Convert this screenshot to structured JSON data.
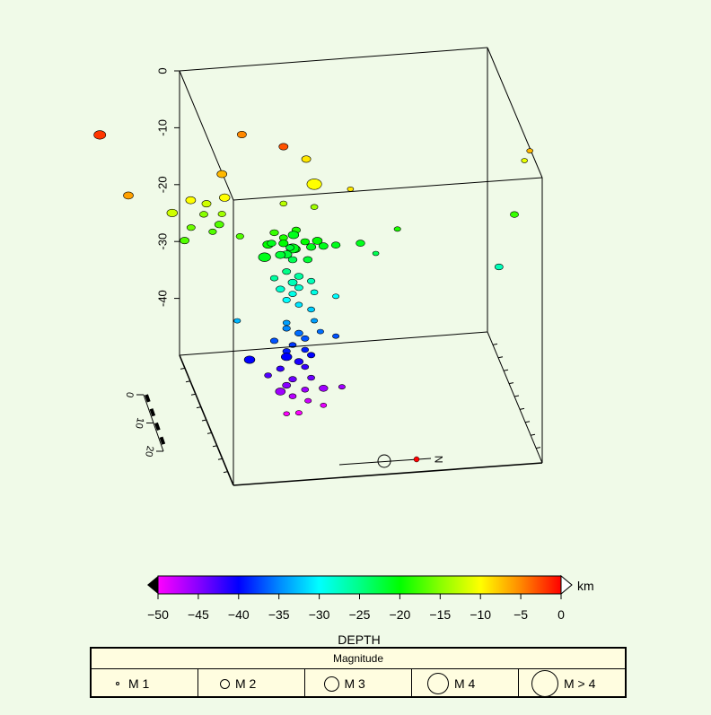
{
  "chart_data": {
    "type": "scatter3d",
    "z_axis": {
      "ticks": [
        0,
        -10,
        -20,
        -30,
        -40
      ],
      "range": [
        -50,
        0
      ]
    },
    "scale_bar": {
      "ticks": [
        "0",
        "10",
        "20"
      ]
    },
    "north_label": "N",
    "colorbar": {
      "label": "DEPTH",
      "unit": "km",
      "range": [
        -50,
        0
      ],
      "ticks": [
        "−50",
        "−45",
        "−40",
        "−35",
        "−30",
        "−25",
        "−20",
        "−15",
        "−10",
        "−5",
        "0"
      ],
      "colors": [
        "#ff00ff",
        "#8800ff",
        "#0000ff",
        "#0088ff",
        "#00ffff",
        "#00ff88",
        "#00ff00",
        "#88ff00",
        "#ffff00",
        "#ff8800",
        "#ff0000"
      ]
    },
    "magnitude_legend": {
      "title": "Magnitude",
      "items": [
        {
          "label": "M 1",
          "mag": 1
        },
        {
          "label": "M 2",
          "mag": 2
        },
        {
          "label": "M 3",
          "mag": 3
        },
        {
          "label": "M 4",
          "mag": 4
        },
        {
          "label": "M > 4",
          "mag": 5
        }
      ]
    },
    "events": [
      {
        "x": -0.32,
        "y": 0.35,
        "z": -2,
        "m": 3.5
      },
      {
        "x": -0.28,
        "y": 0.65,
        "z": -6,
        "m": 2.8
      },
      {
        "x": 0.25,
        "y": 0.5,
        "z": -3,
        "m": 2.5
      },
      {
        "x": 0.15,
        "y": 0.3,
        "z": -5,
        "m": 2.5
      },
      {
        "x": 0.05,
        "y": 0.5,
        "z": -7,
        "m": 2.8
      },
      {
        "x": -0.06,
        "y": 0.55,
        "z": -10,
        "m": 2.8
      },
      {
        "x": 0.05,
        "y": 0.55,
        "z": -10,
        "m": 3
      },
      {
        "x": 0.35,
        "y": 0.5,
        "z": -10,
        "m": 4.5
      },
      {
        "x": 0.35,
        "y": 0.35,
        "z": -9,
        "m": 2.5
      },
      {
        "x": 0.45,
        "y": 0.6,
        "z": -9,
        "m": 1.5
      },
      {
        "x": 0.0,
        "y": 0.5,
        "z": -12,
        "m": 2.5
      },
      {
        "x": -0.12,
        "y": 0.55,
        "z": -12,
        "m": 3
      },
      {
        "x": 0.25,
        "y": 0.5,
        "z": -13,
        "m": 1.8
      },
      {
        "x": 0.05,
        "y": 0.5,
        "z": -14,
        "m": 2
      },
      {
        "x": 0.35,
        "y": 0.5,
        "z": -14,
        "m": 1.8
      },
      {
        "x": 0.0,
        "y": 0.45,
        "z": -15,
        "m": 2.2
      },
      {
        "x": -0.05,
        "y": 0.5,
        "z": -16,
        "m": 2.2
      },
      {
        "x": 0.05,
        "y": 0.45,
        "z": -17,
        "m": 2.5
      },
      {
        "x": 0.1,
        "y": 0.55,
        "z": -17,
        "m": 2
      },
      {
        "x": -0.08,
        "y": 0.55,
        "z": -17,
        "m": 2.5
      },
      {
        "x": 0.02,
        "y": 0.5,
        "z": -17,
        "m": 2
      },
      {
        "x": 0.22,
        "y": 0.5,
        "z": -18,
        "m": 2.3
      },
      {
        "x": 0.25,
        "y": 0.5,
        "z": -19,
        "m": 2.2
      },
      {
        "x": 0.3,
        "y": 0.45,
        "z": -19,
        "m": 2.3
      },
      {
        "x": 0.2,
        "y": 0.5,
        "z": -20,
        "m": 3
      },
      {
        "x": 0.25,
        "y": 0.5,
        "z": -20,
        "m": 2.6
      },
      {
        "x": 0.28,
        "y": 0.55,
        "z": -20,
        "m": 2.8
      },
      {
        "x": 0.32,
        "y": 0.5,
        "z": -20,
        "m": 2.4
      },
      {
        "x": 0.36,
        "y": 0.5,
        "z": -20,
        "m": 2.8
      },
      {
        "x": 0.22,
        "y": 0.45,
        "z": -21,
        "m": 2.4
      },
      {
        "x": 0.18,
        "y": 0.55,
        "z": -21,
        "m": 3.6
      },
      {
        "x": 0.28,
        "y": 0.5,
        "z": -21,
        "m": 3.8
      },
      {
        "x": 0.3,
        "y": 0.4,
        "z": -21,
        "m": 3
      },
      {
        "x": 0.38,
        "y": 0.5,
        "z": -21,
        "m": 2.5
      },
      {
        "x": 0.26,
        "y": 0.5,
        "z": -22,
        "m": 3
      },
      {
        "x": 0.32,
        "y": 0.55,
        "z": -22,
        "m": 2.4
      },
      {
        "x": 0.24,
        "y": 0.5,
        "z": -22,
        "m": 2.8
      },
      {
        "x": 0.28,
        "y": 0.45,
        "z": -22,
        "m": 2.2
      },
      {
        "x": 0.34,
        "y": 0.5,
        "z": -21,
        "m": 2.6
      },
      {
        "x": 0.42,
        "y": 0.5,
        "z": -21,
        "m": 2.4
      },
      {
        "x": 0.5,
        "y": 0.5,
        "z": -21,
        "m": 2.4
      },
      {
        "x": 0.62,
        "y": 0.5,
        "z": -19,
        "m": 1.6
      },
      {
        "x": 0.55,
        "y": 0.5,
        "z": -23,
        "m": 1.5
      },
      {
        "x": 0.28,
        "y": 0.5,
        "z": -23,
        "m": 2.4
      },
      {
        "x": 1.05,
        "y": 0.5,
        "z": -7,
        "m": 1.5
      },
      {
        "x": 1.05,
        "y": 0.4,
        "z": -11,
        "m": 1.4
      },
      {
        "x": 1.0,
        "y": 0.5,
        "z": -18,
        "m": 2.2
      },
      {
        "x": 0.95,
        "y": 0.5,
        "z": -27,
        "m": 2.2
      },
      {
        "x": 0.26,
        "y": 0.5,
        "z": -25,
        "m": 2.2
      },
      {
        "x": 0.3,
        "y": 0.5,
        "z": -26,
        "m": 2.4
      },
      {
        "x": 0.22,
        "y": 0.5,
        "z": -26,
        "m": 2
      },
      {
        "x": 0.28,
        "y": 0.5,
        "z": -27,
        "m": 2.5
      },
      {
        "x": 0.34,
        "y": 0.5,
        "z": -27,
        "m": 2
      },
      {
        "x": 0.24,
        "y": 0.5,
        "z": -28,
        "m": 2.4
      },
      {
        "x": 0.3,
        "y": 0.5,
        "z": -28,
        "m": 2.2
      },
      {
        "x": 0.35,
        "y": 0.5,
        "z": -29,
        "m": 1.8
      },
      {
        "x": 0.28,
        "y": 0.5,
        "z": -29,
        "m": 2
      },
      {
        "x": 0.42,
        "y": 0.5,
        "z": -30,
        "m": 1.6
      },
      {
        "x": 0.26,
        "y": 0.5,
        "z": -30,
        "m": 2
      },
      {
        "x": 0.3,
        "y": 0.5,
        "z": -31,
        "m": 1.8
      },
      {
        "x": 0.34,
        "y": 0.5,
        "z": -32,
        "m": 1.8
      },
      {
        "x": 0.1,
        "y": 0.5,
        "z": -33,
        "m": 1.6
      },
      {
        "x": 0.26,
        "y": 0.5,
        "z": -34,
        "m": 1.8
      },
      {
        "x": 0.35,
        "y": 0.5,
        "z": -34,
        "m": 1.6
      },
      {
        "x": 0.26,
        "y": 0.5,
        "z": -35,
        "m": 2
      },
      {
        "x": 0.3,
        "y": 0.5,
        "z": -36,
        "m": 2.2
      },
      {
        "x": 0.22,
        "y": 0.5,
        "z": -37,
        "m": 2
      },
      {
        "x": 0.32,
        "y": 0.5,
        "z": -37,
        "m": 2
      },
      {
        "x": 0.37,
        "y": 0.5,
        "z": -36,
        "m": 1.6
      },
      {
        "x": 0.28,
        "y": 0.5,
        "z": -38,
        "m": 1.8
      },
      {
        "x": 0.42,
        "y": 0.5,
        "z": -37,
        "m": 1.6
      },
      {
        "x": 0.26,
        "y": 0.5,
        "z": -39,
        "m": 2
      },
      {
        "x": 0.32,
        "y": 0.5,
        "z": -39,
        "m": 1.8
      },
      {
        "x": 0.14,
        "y": 0.5,
        "z": -40,
        "m": 3
      },
      {
        "x": 0.26,
        "y": 0.5,
        "z": -40,
        "m": 3
      },
      {
        "x": 0.3,
        "y": 0.5,
        "z": -41,
        "m": 2.4
      },
      {
        "x": 0.34,
        "y": 0.5,
        "z": -40,
        "m": 2
      },
      {
        "x": 0.24,
        "y": 0.5,
        "z": -42,
        "m": 2
      },
      {
        "x": 0.32,
        "y": 0.5,
        "z": -42,
        "m": 1.8
      },
      {
        "x": 0.2,
        "y": 0.5,
        "z": -43,
        "m": 1.8
      },
      {
        "x": 0.28,
        "y": 0.5,
        "z": -44,
        "m": 2
      },
      {
        "x": 0.34,
        "y": 0.5,
        "z": -44,
        "m": 1.8
      },
      {
        "x": 0.26,
        "y": 0.5,
        "z": -45,
        "m": 2.2
      },
      {
        "x": 0.24,
        "y": 0.5,
        "z": -46,
        "m": 2.8
      },
      {
        "x": 0.32,
        "y": 0.5,
        "z": -46,
        "m": 1.8
      },
      {
        "x": 0.38,
        "y": 0.5,
        "z": -46,
        "m": 2.4
      },
      {
        "x": 0.44,
        "y": 0.5,
        "z": -46,
        "m": 1.6
      },
      {
        "x": 0.28,
        "y": 0.5,
        "z": -47,
        "m": 1.8
      },
      {
        "x": 0.33,
        "y": 0.5,
        "z": -48,
        "m": 1.6
      },
      {
        "x": 0.38,
        "y": 0.5,
        "z": -49,
        "m": 1.5
      },
      {
        "x": 0.3,
        "y": 0.5,
        "z": -50,
        "m": 1.6
      },
      {
        "x": 0.26,
        "y": 0.5,
        "z": -50,
        "m": 1.4
      }
    ]
  }
}
